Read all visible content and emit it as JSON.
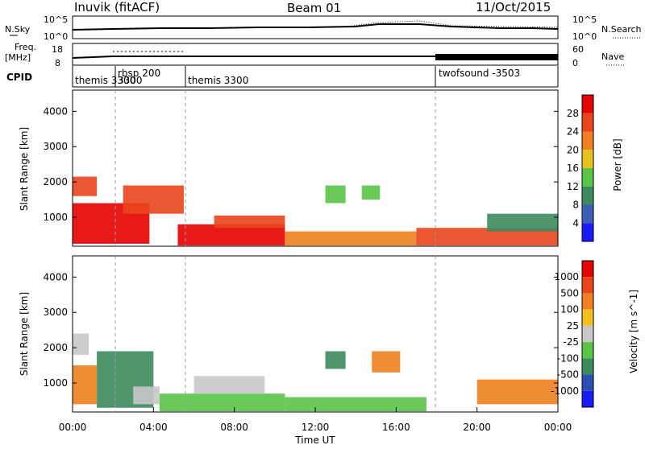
{
  "header": {
    "title": "Inuvik (fitACF)",
    "beam": "Beam 01",
    "date": "11/Oct/2015"
  },
  "nsky_panel": {
    "left_label": "N.Sky",
    "left_ticks": [
      "10^5",
      "10^0"
    ],
    "right_label": "N.Search",
    "right_ticks": [
      "10^5",
      "10^0"
    ]
  },
  "freq_panel": {
    "left_label_1": "Freq.",
    "left_label_2": "[MHz]",
    "left_ticks": [
      "18",
      "8"
    ],
    "right_label": "Nave",
    "right_ticks": [
      "60",
      "0"
    ]
  },
  "cpid": {
    "label": "CPID",
    "segments": [
      {
        "name": "themis 3300",
        "start": 0.0,
        "end": 2.2
      },
      {
        "name": "rbsp 200",
        "start": 2.2,
        "end": 5.6
      },
      {
        "name": "3300",
        "start": 2.2,
        "end": 2.2
      },
      {
        "name": "themis 3300",
        "start": 5.6,
        "end": 18.1
      },
      {
        "name": "twofsound -3503",
        "start": 18.1,
        "end": 24.0
      }
    ]
  },
  "chart_data": [
    {
      "type": "heatmap",
      "quantity": "Power",
      "ylabel": "Slant Range [km]",
      "yticks": [
        1000,
        2000,
        3000,
        4000
      ],
      "ylim": [
        180,
        4600
      ],
      "xlim": [
        0,
        24
      ],
      "colorbar_label": "Power [dB]",
      "colorbar_ticks": [
        "4",
        "8",
        "12",
        "16",
        "20",
        "24",
        "28"
      ],
      "colorbar_colors": [
        "#1a1aff",
        "#3a5fb5",
        "#3c8a5e",
        "#59c447",
        "#e6c21f",
        "#f08020",
        "#e8451c",
        "#e60000"
      ],
      "regions": [
        {
          "t0": 0.0,
          "t1": 1.2,
          "r0": 1600,
          "r1": 2150,
          "color": "#e8451c"
        },
        {
          "t0": 0.0,
          "t1": 3.8,
          "r0": 250,
          "r1": 1400,
          "color": "#e60000"
        },
        {
          "t0": 2.5,
          "t1": 5.5,
          "r0": 1100,
          "r1": 1900,
          "color": "#e8451c"
        },
        {
          "t0": 5.2,
          "t1": 10.5,
          "r0": 200,
          "r1": 800,
          "color": "#e60000"
        },
        {
          "t0": 7.0,
          "t1": 10.5,
          "r0": 700,
          "r1": 1050,
          "color": "#e8451c"
        },
        {
          "t0": 10.5,
          "t1": 17.0,
          "r0": 200,
          "r1": 600,
          "color": "#f08020"
        },
        {
          "t0": 12.5,
          "t1": 13.5,
          "r0": 1400,
          "r1": 1900,
          "color": "#59c447"
        },
        {
          "t0": 14.3,
          "t1": 15.2,
          "r0": 1500,
          "r1": 1900,
          "color": "#59c447"
        },
        {
          "t0": 17.0,
          "t1": 24.0,
          "r0": 200,
          "r1": 700,
          "color": "#e8451c"
        },
        {
          "t0": 20.5,
          "t1": 24.0,
          "r0": 600,
          "r1": 1100,
          "color": "#3c8a5e"
        }
      ]
    },
    {
      "type": "heatmap",
      "quantity": "Velocity",
      "ylabel": "Slant Range [km]",
      "yticks": [
        1000,
        2000,
        3000,
        4000
      ],
      "ylim": [
        180,
        4600
      ],
      "xlim": [
        0,
        24
      ],
      "xlabel": "Time UT",
      "xticks": [
        "00:00",
        "04:00",
        "08:00",
        "12:00",
        "16:00",
        "20:00",
        "00:00"
      ],
      "colorbar_label": "Velocity [m s^-1]",
      "colorbar_ticks": [
        "1000",
        "500",
        "100",
        "25",
        "-25",
        "-100",
        "-500",
        "-1000"
      ],
      "colorbar_colors": [
        "#1a1aff",
        "#2a4fb0",
        "#3c8a5e",
        "#59c447",
        "#c8c8c8",
        "#f2c020",
        "#f08020",
        "#e8451c",
        "#e60000"
      ],
      "regions": [
        {
          "t0": 0.0,
          "t1": 0.8,
          "r0": 1800,
          "r1": 2400,
          "color": "#c8c8c8"
        },
        {
          "t0": 0.0,
          "t1": 1.2,
          "r0": 400,
          "r1": 1500,
          "color": "#f08020"
        },
        {
          "t0": 1.2,
          "t1": 4.0,
          "r0": 300,
          "r1": 1900,
          "color": "#3c8a5e"
        },
        {
          "t0": 3.0,
          "t1": 4.3,
          "r0": 400,
          "r1": 900,
          "color": "#c8c8c8"
        },
        {
          "t0": 4.3,
          "t1": 10.5,
          "r0": 200,
          "r1": 700,
          "color": "#59c447"
        },
        {
          "t0": 6.0,
          "t1": 9.5,
          "r0": 700,
          "r1": 1200,
          "color": "#c8c8c8"
        },
        {
          "t0": 12.5,
          "t1": 13.5,
          "r0": 1400,
          "r1": 1900,
          "color": "#3c8a5e"
        },
        {
          "t0": 14.8,
          "t1": 16.2,
          "r0": 1300,
          "r1": 1900,
          "color": "#f08020"
        },
        {
          "t0": 10.5,
          "t1": 17.5,
          "r0": 200,
          "r1": 600,
          "color": "#59c447"
        },
        {
          "t0": 20.0,
          "t1": 24.0,
          "r0": 400,
          "r1": 1100,
          "color": "#f08020"
        }
      ]
    }
  ]
}
